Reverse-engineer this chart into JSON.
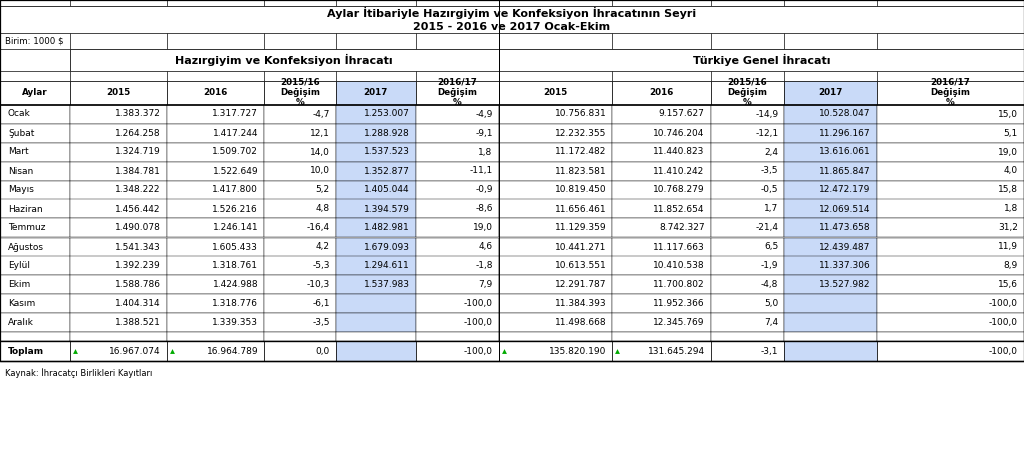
{
  "title_line1": "Aylar İtibariyle Hazırgiyim ve Konfeksiyon İhracatının Seyri",
  "title_line2": "2015 - 2016 ve 2017 Ocak-Ekim",
  "unit_label": "Birim: 1000 $",
  "source_label": "Kaynak: İhracatçı Birlikleri Kayıtları",
  "group1_header": "Hazırgiyim ve Konfeksiyon İhracatı",
  "group2_header": "Türkiye Genel İhracatı",
  "months": [
    "Ocak",
    "Şubat",
    "Mart",
    "Nisan",
    "Mayıs",
    "Haziran",
    "Temmuz",
    "Ağustos",
    "Eylül",
    "Ekim",
    "Kasım",
    "Aralık"
  ],
  "hki_2015": [
    "1.383.372",
    "1.264.258",
    "1.324.719",
    "1.384.781",
    "1.348.222",
    "1.456.442",
    "1.490.078",
    "1.541.343",
    "1.392.239",
    "1.588.786",
    "1.404.314",
    "1.388.521"
  ],
  "hki_2016": [
    "1.317.727",
    "1.417.244",
    "1.509.702",
    "1.522.649",
    "1.417.800",
    "1.526.216",
    "1.246.141",
    "1.605.433",
    "1.318.761",
    "1.424.988",
    "1.318.776",
    "1.339.353"
  ],
  "hki_deg1516": [
    "-4,7",
    "12,1",
    "14,0",
    "10,0",
    "5,2",
    "4,8",
    "-16,4",
    "4,2",
    "-5,3",
    "-10,3",
    "-6,1",
    "-3,5"
  ],
  "hki_2017": [
    "1.253.007",
    "1.288.928",
    "1.537.523",
    "1.352.877",
    "1.405.044",
    "1.394.579",
    "1.482.981",
    "1.679.093",
    "1.294.611",
    "1.537.983",
    "",
    ""
  ],
  "hki_deg1617": [
    "-4,9",
    "-9,1",
    "1,8",
    "-11,1",
    "-0,9",
    "-8,6",
    "19,0",
    "4,6",
    "-1,8",
    "7,9",
    "-100,0",
    "-100,0"
  ],
  "tgi_2015": [
    "10.756.831",
    "12.232.355",
    "11.172.482",
    "11.823.581",
    "10.819.450",
    "11.656.461",
    "11.129.359",
    "10.441.271",
    "10.613.551",
    "12.291.787",
    "11.384.393",
    "11.498.668"
  ],
  "tgi_2016": [
    "9.157.627",
    "10.746.204",
    "11.440.823",
    "11.410.242",
    "10.768.279",
    "11.852.654",
    "8.742.327",
    "11.117.663",
    "10.410.538",
    "11.700.802",
    "11.952.366",
    "12.345.769"
  ],
  "tgi_deg1516": [
    "-14,9",
    "-12,1",
    "2,4",
    "-3,5",
    "-0,5",
    "1,7",
    "-21,4",
    "6,5",
    "-1,9",
    "-4,8",
    "5,0",
    "7,4"
  ],
  "tgi_2017": [
    "10.528.047",
    "11.296.167",
    "13.616.061",
    "11.865.847",
    "12.472.179",
    "12.069.514",
    "11.473.658",
    "12.439.487",
    "11.337.306",
    "13.527.982",
    "",
    ""
  ],
  "tgi_deg1617": [
    "15,0",
    "5,1",
    "19,0",
    "4,0",
    "15,8",
    "1,8",
    "31,2",
    "11,9",
    "8,9",
    "15,6",
    "-100,0",
    "-100,0"
  ],
  "toplam_hki_2015": "16.967.074",
  "toplam_hki_2016": "16.964.789",
  "toplam_hki_deg1516": "0,0",
  "toplam_hki_2017": "",
  "toplam_hki_deg1617": "-100,0",
  "toplam_tgi_2015": "135.820.190",
  "toplam_tgi_2016": "131.645.294",
  "toplam_tgi_deg1516": "-3,1",
  "toplam_tgi_2017": "",
  "toplam_tgi_deg1617": "-100,0",
  "col2017_bg": "#c9daf8",
  "figwidth": 10.24,
  "figheight": 4.74,
  "dpi": 100
}
